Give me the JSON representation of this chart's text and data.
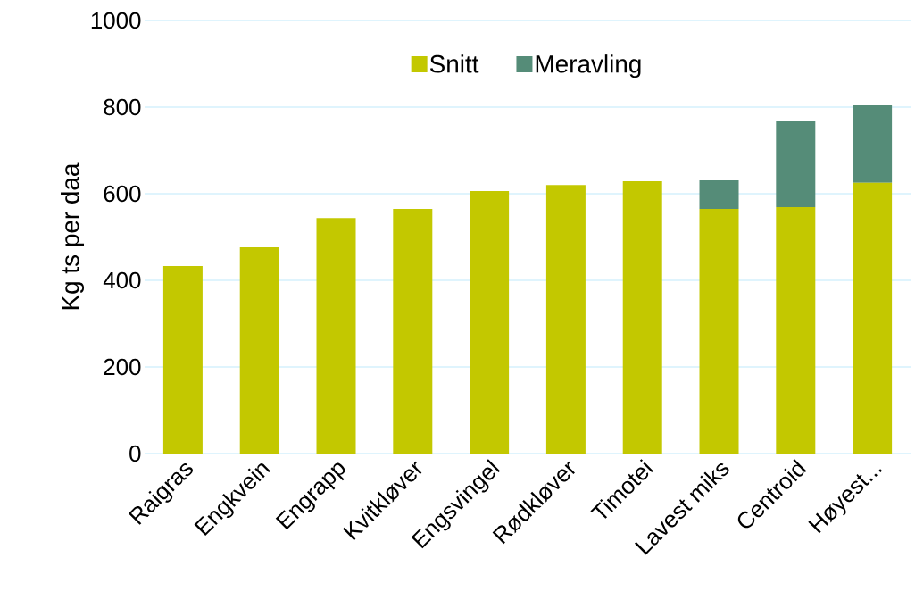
{
  "chart_data": {
    "type": "bar",
    "stacked": true,
    "ylabel": "Kg ts per daa",
    "categories": [
      "Raigras",
      "Engkvein",
      "Engrapp",
      "Kvitkløver",
      "Engsvingel",
      "Rødkløver",
      "Timotei",
      "Lavest miks",
      "Centroid",
      "Høyest..."
    ],
    "series": [
      {
        "name": "Snitt",
        "color": "#c3c800",
        "values": [
          433,
          476,
          544,
          565,
          606,
          620,
          629,
          565,
          569,
          625
        ]
      },
      {
        "name": "Meravling",
        "color": "#558c78",
        "values": [
          null,
          null,
          null,
          null,
          null,
          null,
          null,
          66,
          198,
          179
        ]
      }
    ],
    "ylim": [
      0,
      1000
    ],
    "yticks": [
      0,
      200,
      400,
      600,
      800,
      1000
    ],
    "grid": "y",
    "legend": "top"
  }
}
